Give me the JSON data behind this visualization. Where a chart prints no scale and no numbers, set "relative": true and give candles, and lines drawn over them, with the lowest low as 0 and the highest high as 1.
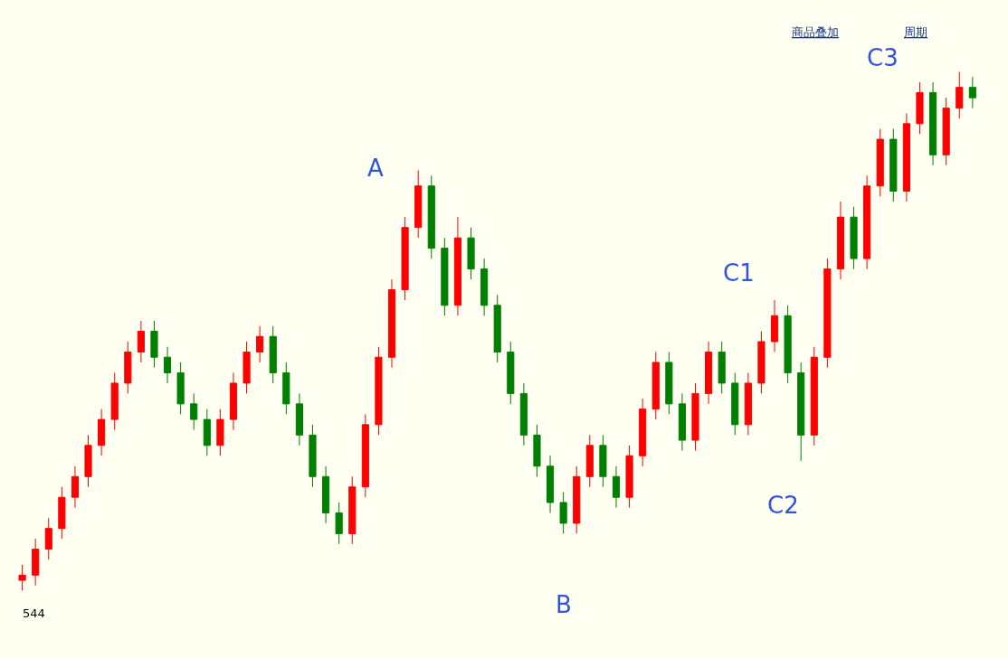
{
  "chart_data": {
    "type": "candlestick",
    "relative": true,
    "categories": [
      null,
      null,
      null,
      null,
      null,
      null,
      null,
      null,
      null,
      null,
      null,
      null,
      null,
      null,
      null,
      null,
      null,
      null,
      null,
      null,
      null,
      null,
      null,
      null,
      null,
      null,
      null,
      null,
      null,
      null,
      null,
      null,
      null,
      null,
      null,
      null,
      null,
      null,
      null,
      null,
      null,
      null,
      null,
      null,
      null,
      null,
      null,
      null,
      null,
      null,
      null,
      null,
      null,
      null,
      null,
      null,
      null,
      null,
      null,
      null,
      null,
      null,
      null,
      null,
      null,
      null,
      null,
      null,
      null,
      null,
      null,
      null,
      null
    ],
    "series": [
      {
        "ohlc": [
          [
            0.02,
            0.05,
            0,
            0.03
          ],
          [
            0.03,
            0.1,
            0.01,
            0.08
          ],
          [
            0.08,
            0.14,
            0.06,
            0.12
          ],
          [
            0.12,
            0.2,
            0.1,
            0.18
          ],
          [
            0.18,
            0.24,
            0.16,
            0.22
          ],
          [
            0.22,
            0.3,
            0.2,
            0.28
          ],
          [
            0.28,
            0.35,
            0.26,
            0.33
          ],
          [
            0.33,
            0.42,
            0.31,
            0.4
          ],
          [
            0.4,
            0.48,
            0.38,
            0.46
          ],
          [
            0.46,
            0.52,
            0.44,
            0.5
          ],
          [
            0.5,
            0.52,
            0.43,
            0.45
          ],
          [
            0.45,
            0.47,
            0.4,
            0.42
          ],
          [
            0.42,
            0.44,
            0.34,
            0.36
          ],
          [
            0.36,
            0.38,
            0.31,
            0.33
          ],
          [
            0.33,
            0.35,
            0.26,
            0.28
          ],
          [
            0.28,
            0.35,
            0.26,
            0.33
          ],
          [
            0.33,
            0.42,
            0.31,
            0.4
          ],
          [
            0.4,
            0.48,
            0.38,
            0.46
          ],
          [
            0.46,
            0.51,
            0.44,
            0.49
          ],
          [
            0.49,
            0.51,
            0.4,
            0.42
          ],
          [
            0.42,
            0.44,
            0.34,
            0.36
          ],
          [
            0.36,
            0.38,
            0.28,
            0.3
          ],
          [
            0.3,
            0.32,
            0.2,
            0.22
          ],
          [
            0.22,
            0.24,
            0.13,
            0.15
          ],
          [
            0.15,
            0.17,
            0.09,
            0.11
          ],
          [
            0.11,
            0.22,
            0.09,
            0.2
          ],
          [
            0.2,
            0.34,
            0.18,
            0.32
          ],
          [
            0.32,
            0.47,
            0.3,
            0.45
          ],
          [
            0.45,
            0.6,
            0.43,
            0.58
          ],
          [
            0.58,
            0.72,
            0.56,
            0.7
          ],
          [
            0.7,
            0.81,
            0.68,
            0.78
          ],
          [
            0.78,
            0.8,
            0.64,
            0.66
          ],
          [
            0.66,
            0.68,
            0.53,
            0.55
          ],
          [
            0.55,
            0.72,
            0.53,
            0.68
          ],
          [
            0.68,
            0.7,
            0.6,
            0.62
          ],
          [
            0.62,
            0.64,
            0.53,
            0.55
          ],
          [
            0.55,
            0.57,
            0.44,
            0.46
          ],
          [
            0.46,
            0.48,
            0.36,
            0.38
          ],
          [
            0.38,
            0.4,
            0.28,
            0.3
          ],
          [
            0.3,
            0.32,
            0.22,
            0.24
          ],
          [
            0.24,
            0.26,
            0.15,
            0.17
          ],
          [
            0.17,
            0.19,
            0.11,
            0.13
          ],
          [
            0.13,
            0.24,
            0.11,
            0.22
          ],
          [
            0.22,
            0.3,
            0.2,
            0.28
          ],
          [
            0.28,
            0.3,
            0.2,
            0.22
          ],
          [
            0.22,
            0.24,
            0.16,
            0.18
          ],
          [
            0.18,
            0.28,
            0.16,
            0.26
          ],
          [
            0.26,
            0.37,
            0.24,
            0.35
          ],
          [
            0.35,
            0.46,
            0.33,
            0.44
          ],
          [
            0.44,
            0.46,
            0.34,
            0.36
          ],
          [
            0.36,
            0.38,
            0.27,
            0.29
          ],
          [
            0.29,
            0.4,
            0.27,
            0.38
          ],
          [
            0.38,
            0.48,
            0.36,
            0.46
          ],
          [
            0.46,
            0.48,
            0.38,
            0.4
          ],
          [
            0.4,
            0.42,
            0.3,
            0.32
          ],
          [
            0.32,
            0.42,
            0.3,
            0.4
          ],
          [
            0.4,
            0.5,
            0.38,
            0.48
          ],
          [
            0.48,
            0.56,
            0.46,
            0.53
          ],
          [
            0.53,
            0.55,
            0.4,
            0.42
          ],
          [
            0.42,
            0.44,
            0.25,
            0.3
          ],
          [
            0.3,
            0.47,
            0.28,
            0.45
          ],
          [
            0.45,
            0.64,
            0.43,
            0.62
          ],
          [
            0.62,
            0.75,
            0.6,
            0.72
          ],
          [
            0.72,
            0.74,
            0.62,
            0.64
          ],
          [
            0.64,
            0.8,
            0.62,
            0.78
          ],
          [
            0.78,
            0.89,
            0.76,
            0.87
          ],
          [
            0.87,
            0.89,
            0.75,
            0.77
          ],
          [
            0.77,
            0.92,
            0.75,
            0.9
          ],
          [
            0.9,
            0.98,
            0.88,
            0.96
          ],
          [
            0.96,
            0.98,
            0.82,
            0.84
          ],
          [
            0.84,
            0.95,
            0.82,
            0.93
          ],
          [
            0.93,
            1.0,
            0.91,
            0.97
          ],
          [
            0.97,
            0.99,
            0.93,
            0.95
          ]
        ]
      }
    ],
    "annotations": [
      "A",
      "B",
      "C1",
      "C2",
      "C3",
      "544",
      "商品叠加",
      "周期"
    ]
  }
}
